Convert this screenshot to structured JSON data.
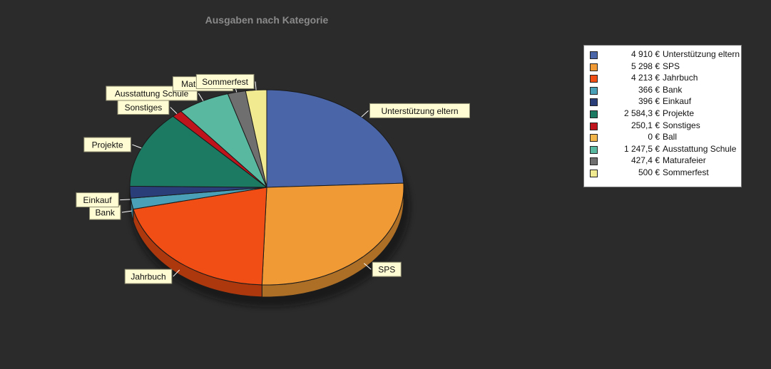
{
  "chart_data": {
    "type": "pie",
    "title": "Ausgaben nach Kategorie",
    "currency": "€",
    "categories": [
      "Unterstützung eltern",
      "SPS",
      "Jahrbuch",
      "Bank",
      "Einkauf",
      "Projekte",
      "Sonstiges",
      "Ball",
      "Ausstattung Schule",
      "Maturafeier",
      "Sommerfest"
    ],
    "values": [
      4910,
      5298,
      4213,
      366,
      396,
      2584.3,
      250.1,
      0,
      1247.5,
      427.4,
      500
    ],
    "value_labels": [
      "4 910 €",
      "5 298 €",
      "4 213 €",
      "366 €",
      "396 €",
      "2 584,3 €",
      "250,1 €",
      "0 €",
      "1 247,5 €",
      "427,4 €",
      "500 €"
    ],
    "colors": [
      "#4a66a8",
      "#f09a35",
      "#f04e14",
      "#4aa1b7",
      "#2a3f7a",
      "#1d7a62",
      "#c0141c",
      "#f2b54a",
      "#59b9a0",
      "#6f6f6f",
      "#f2ea91"
    ],
    "legend_position": "top-right",
    "style": "3d-pie"
  }
}
